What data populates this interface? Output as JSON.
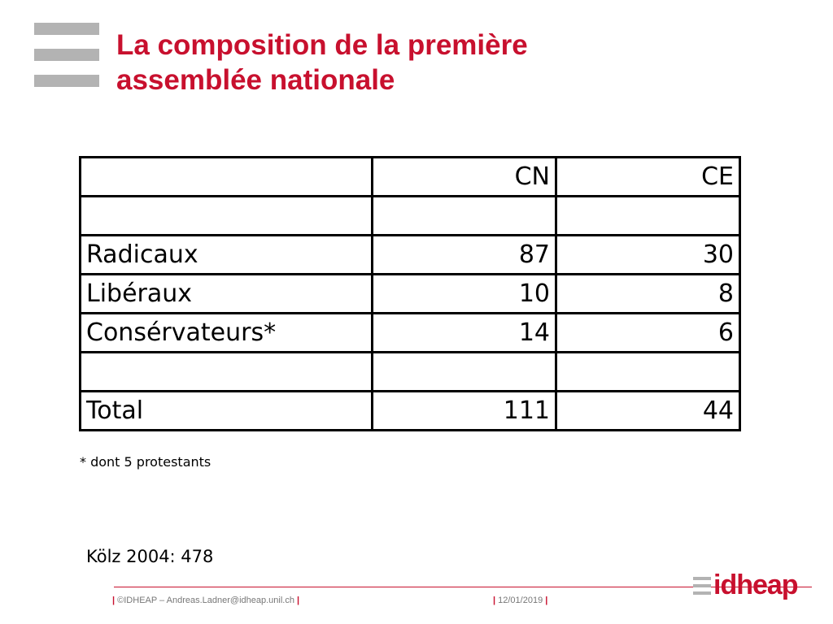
{
  "slide": {
    "title_line1": "La composition de la première",
    "title_line2": "assemblée nationale"
  },
  "table": {
    "header": {
      "label": "",
      "cn": "CN",
      "ce": "CE"
    },
    "rows": [
      {
        "label": "",
        "cn": "",
        "ce": ""
      },
      {
        "label": "Radicaux",
        "cn": "87",
        "ce": "30"
      },
      {
        "label": "Libéraux",
        "cn": "10",
        "ce": "8"
      },
      {
        "label": "Consérvateurs*",
        "cn": "14",
        "ce": "6"
      },
      {
        "label": "",
        "cn": "",
        "ce": ""
      },
      {
        "label": "Total",
        "cn": "111",
        "ce": "44"
      }
    ]
  },
  "footnote": "* dont 5 protestants",
  "source": "Kölz 2004: 478",
  "footer": {
    "copyright": "©IDHEAP – Andreas.Ladner@idheap.unil.ch",
    "date": "12/01/2019",
    "separator": "|"
  },
  "logo": {
    "text": "idheap"
  },
  "colors": {
    "accent": "#c8102e",
    "grey": "#b3b3b3"
  }
}
